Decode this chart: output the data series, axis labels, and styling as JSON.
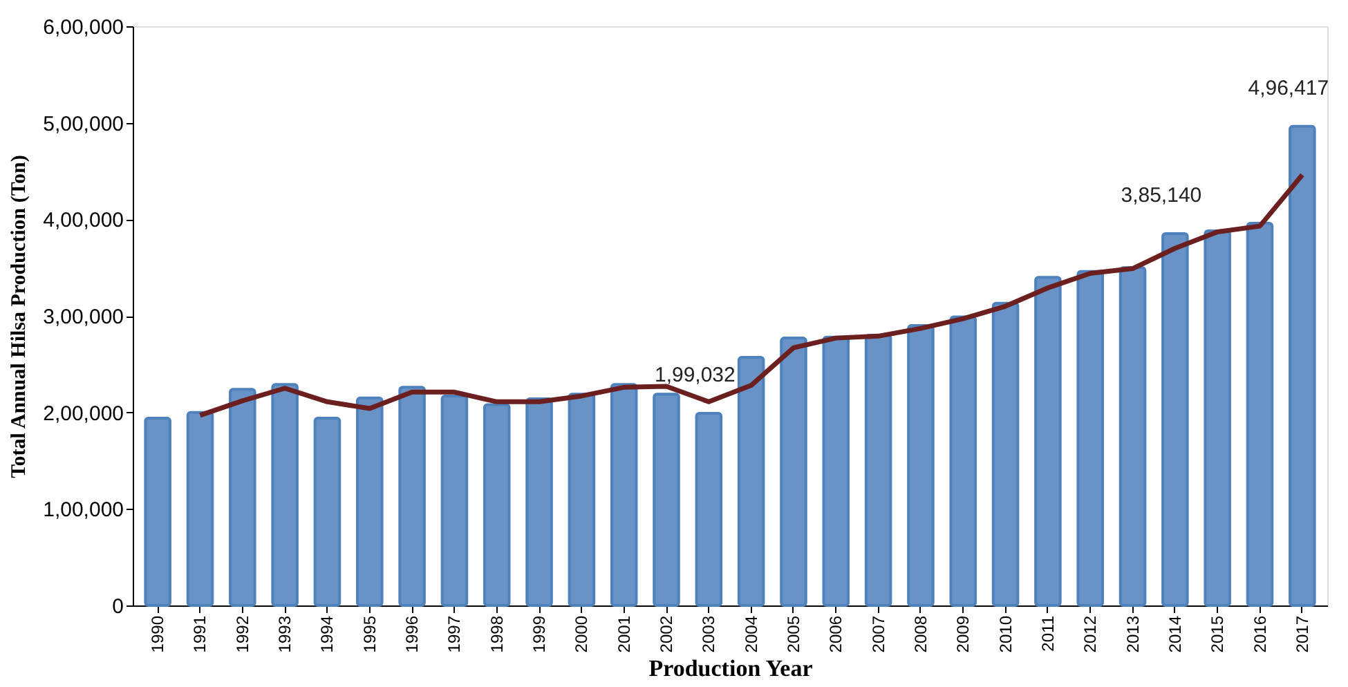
{
  "chart_data": {
    "type": "bar",
    "xlabel": "Production Year",
    "ylabel": "Total Annual Hilsa Production (Ton)",
    "categories": [
      "1990",
      "1991",
      "1992",
      "1993",
      "1994",
      "1995",
      "1996",
      "1997",
      "1998",
      "1999",
      "2000",
      "2001",
      "2002",
      "2003",
      "2004",
      "2005",
      "2006",
      "2007",
      "2008",
      "2009",
      "2010",
      "2011",
      "2012",
      "2013",
      "2014",
      "2015",
      "2016",
      "2017"
    ],
    "series": [
      {
        "color": "#4f81bd",
        "values": [
          194000,
          200000,
          224000,
          229000,
          194000,
          215000,
          226000,
          217000,
          208000,
          214000,
          219000,
          229000,
          219000,
          199032,
          257000,
          277000,
          278000,
          280000,
          290000,
          299000,
          313000,
          340000,
          346000,
          350000,
          385140,
          388000,
          396000,
          496417
        ],
        "value_labels": [
          null,
          null,
          null,
          null,
          null,
          null,
          null,
          null,
          null,
          null,
          null,
          null,
          null,
          "1,99,032",
          null,
          null,
          null,
          null,
          null,
          null,
          null,
          null,
          null,
          null,
          "3,85,140",
          null,
          null,
          "4,96,417"
        ]
      },
      {
        "type": "line",
        "color": "#6b1f1f",
        "values": [
          null,
          197000,
          212000,
          225000,
          211000,
          204000,
          221000,
          221000,
          211000,
          211000,
          217000,
          226000,
          227000,
          211000,
          228000,
          267000,
          277000,
          279000,
          287000,
          297000,
          310000,
          329000,
          344000,
          349000,
          370000,
          387000,
          393000,
          446000
        ]
      }
    ],
    "ylim": [
      0,
      600000
    ],
    "yticks": [
      0,
      {
        "value": 100000,
        "label": "1,00,000"
      },
      {
        "value": 200000,
        "label": "2,00,000"
      },
      {
        "value": 300000,
        "label": "3,00,000"
      },
      {
        "value": 400000,
        "label": "4,00,000"
      },
      {
        "value": 500000,
        "label": "5,00,000"
      },
      {
        "value": 600000,
        "label": "6,00,000"
      }
    ],
    "grid": false,
    "marker": "none",
    "line_style": "solid"
  }
}
